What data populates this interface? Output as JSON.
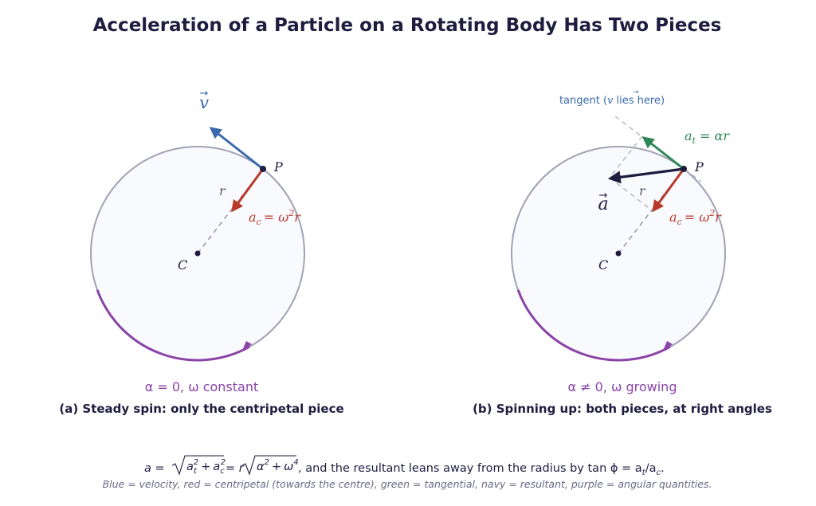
{
  "title": "Acceleration of a Particle on a Rotating Body Has Two Pieces",
  "colors": {
    "velocity": "#3a6aad",
    "centripetal": "#b8392b",
    "tangential": "#2e8757",
    "resultant": "#1f1d3f",
    "angular": "#8a44a8",
    "circle": "#a2a2b4",
    "guide": "#9a9aae"
  },
  "panel_a": {
    "velocity_label": "v",
    "point_label": "P",
    "center_label": "C",
    "radius_label": "r",
    "centripetal_label": "a",
    "centripetal_sub": "c",
    "centripetal_rhs": "= ω",
    "centripetal_exp": "2",
    "centripetal_tail": "r",
    "angular_label": "α = 0,  ω constant",
    "caption": "(a) Steady spin: only the centripetal piece"
  },
  "panel_b": {
    "tangent_prefix": "tangent (",
    "tangent_v": "v",
    "tangent_suffix": " lies here)",
    "tangential_label": "a",
    "tangential_sub": "t",
    "tangential_rhs": " = αr",
    "point_label": "P",
    "center_label": "C",
    "radius_label": "r",
    "resultant_label": "a",
    "centripetal_label": "a",
    "centripetal_sub": "c",
    "centripetal_rhs": "= ω",
    "centripetal_exp": "2",
    "centripetal_tail": "r",
    "angular_label": "α ≠ 0,  ω growing",
    "caption": "(b) Spinning up: both pieces, at right angles"
  },
  "formula": {
    "lhs": "a =",
    "mid": "= r",
    "tail": ",   and the resultant leans away from the radius by tan ϕ = a",
    "tail_sub": "t",
    "tail_slash": "/a",
    "tail_sub2": "c",
    "tail_end": "."
  },
  "footnote": "Blue = velocity, red = centripetal (towards the centre), green = tangential, navy = resultant, purple = angular quantities."
}
